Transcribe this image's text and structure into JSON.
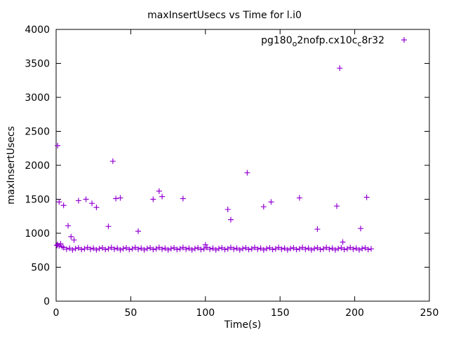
{
  "chart_data": {
    "type": "scatter",
    "title": "maxInsertUsecs vs Time for l.i0",
    "xlabel": "Time(s)",
    "ylabel": "maxInsertUsecs",
    "xlim": [
      0,
      250
    ],
    "ylim": [
      0,
      4000
    ],
    "xticks": [
      0,
      50,
      100,
      150,
      200,
      250
    ],
    "yticks": [
      0,
      500,
      1000,
      1500,
      2000,
      2500,
      3000,
      3500,
      4000
    ],
    "grid": false,
    "background_color": "#ffffff",
    "axis_color": "#000000",
    "legend": {
      "position": "top-right-inside",
      "label": "pg180_o2nofp.cx10c_c8r32",
      "label_parts": [
        {
          "t": "pg180",
          "sub": false
        },
        {
          "t": "o",
          "sub": true
        },
        {
          "t": "2nofp.cx10c",
          "sub": false
        },
        {
          "t": "c",
          "sub": true
        },
        {
          "t": "8r32",
          "sub": false
        }
      ]
    },
    "marker": {
      "shape": "plus",
      "color": "#9400d3"
    },
    "series": [
      {
        "name": "pg180_o2nofp.cx10c_c8r32",
        "points": [
          [
            1,
            2290
          ],
          [
            2,
            1460
          ],
          [
            5,
            1410
          ],
          [
            8,
            1110
          ],
          [
            10,
            950
          ],
          [
            12,
            900
          ],
          [
            15,
            1480
          ],
          [
            20,
            1500
          ],
          [
            24,
            1440
          ],
          [
            27,
            1380
          ],
          [
            35,
            1100
          ],
          [
            38,
            2060
          ],
          [
            40,
            1510
          ],
          [
            43,
            1520
          ],
          [
            55,
            1030
          ],
          [
            65,
            1500
          ],
          [
            69,
            1620
          ],
          [
            71,
            1540
          ],
          [
            85,
            1510
          ],
          [
            100,
            830
          ],
          [
            115,
            1350
          ],
          [
            117,
            1200
          ],
          [
            128,
            1890
          ],
          [
            139,
            1390
          ],
          [
            144,
            1460
          ],
          [
            163,
            1520
          ],
          [
            175,
            1060
          ],
          [
            188,
            1400
          ],
          [
            190,
            3430
          ],
          [
            192,
            870
          ],
          [
            204,
            1070
          ],
          [
            208,
            1530
          ],
          [
            0.5,
            820
          ],
          [
            1,
            835
          ],
          [
            2,
            815
          ],
          [
            3,
            845
          ],
          [
            4,
            800
          ],
          [
            5,
            790
          ],
          [
            7,
            765
          ],
          [
            9,
            780
          ],
          [
            11,
            755
          ],
          [
            13,
            775
          ],
          [
            15,
            785
          ],
          [
            17,
            760
          ],
          [
            19,
            770
          ],
          [
            21,
            790
          ],
          [
            23,
            765
          ],
          [
            25,
            780
          ],
          [
            27,
            755
          ],
          [
            29,
            775
          ],
          [
            31,
            785
          ],
          [
            33,
            760
          ],
          [
            35,
            770
          ],
          [
            37,
            790
          ],
          [
            39,
            765
          ],
          [
            41,
            780
          ],
          [
            43,
            755
          ],
          [
            45,
            775
          ],
          [
            47,
            785
          ],
          [
            49,
            760
          ],
          [
            51,
            770
          ],
          [
            53,
            790
          ],
          [
            55,
            765
          ],
          [
            57,
            780
          ],
          [
            59,
            755
          ],
          [
            61,
            775
          ],
          [
            63,
            785
          ],
          [
            65,
            760
          ],
          [
            67,
            770
          ],
          [
            69,
            790
          ],
          [
            71,
            765
          ],
          [
            73,
            780
          ],
          [
            75,
            755
          ],
          [
            77,
            775
          ],
          [
            79,
            785
          ],
          [
            81,
            760
          ],
          [
            83,
            770
          ],
          [
            85,
            790
          ],
          [
            87,
            765
          ],
          [
            89,
            780
          ],
          [
            91,
            755
          ],
          [
            93,
            775
          ],
          [
            95,
            785
          ],
          [
            97,
            760
          ],
          [
            99,
            770
          ],
          [
            101,
            790
          ],
          [
            103,
            765
          ],
          [
            105,
            780
          ],
          [
            107,
            755
          ],
          [
            109,
            775
          ],
          [
            111,
            785
          ],
          [
            113,
            760
          ],
          [
            115,
            770
          ],
          [
            117,
            790
          ],
          [
            119,
            765
          ],
          [
            121,
            780
          ],
          [
            123,
            755
          ],
          [
            125,
            775
          ],
          [
            127,
            785
          ],
          [
            129,
            760
          ],
          [
            131,
            770
          ],
          [
            133,
            790
          ],
          [
            135,
            765
          ],
          [
            137,
            780
          ],
          [
            139,
            755
          ],
          [
            141,
            775
          ],
          [
            143,
            785
          ],
          [
            145,
            760
          ],
          [
            147,
            770
          ],
          [
            149,
            790
          ],
          [
            151,
            765
          ],
          [
            153,
            780
          ],
          [
            155,
            755
          ],
          [
            157,
            775
          ],
          [
            159,
            785
          ],
          [
            161,
            760
          ],
          [
            163,
            770
          ],
          [
            165,
            790
          ],
          [
            167,
            765
          ],
          [
            169,
            780
          ],
          [
            171,
            755
          ],
          [
            173,
            775
          ],
          [
            175,
            785
          ],
          [
            177,
            760
          ],
          [
            179,
            770
          ],
          [
            181,
            790
          ],
          [
            183,
            765
          ],
          [
            185,
            780
          ],
          [
            187,
            755
          ],
          [
            189,
            775
          ],
          [
            191,
            785
          ],
          [
            193,
            760
          ],
          [
            195,
            770
          ],
          [
            197,
            790
          ],
          [
            199,
            765
          ],
          [
            201,
            780
          ],
          [
            203,
            755
          ],
          [
            205,
            775
          ],
          [
            207,
            785
          ],
          [
            209,
            760
          ],
          [
            211,
            770
          ]
        ]
      }
    ]
  }
}
